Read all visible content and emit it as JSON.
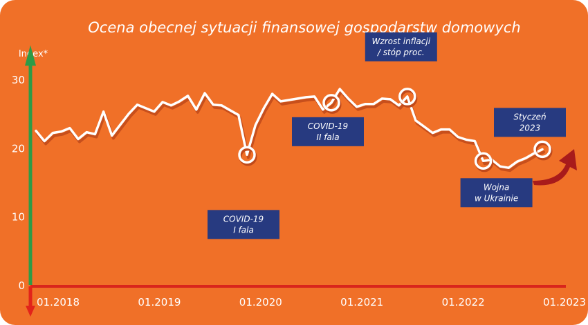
{
  "colors": {
    "background": "#F07028",
    "line": "#ffffff",
    "shadow": "#C0491A",
    "callout_box": "#273A80",
    "y_axis_top": "#2E9B47",
    "y_axis_bottom": "#E2231A",
    "x_axis": "#D9251C",
    "arrow": "#A81B1B"
  },
  "chart_data": {
    "type": "line",
    "title": "Ocena obecnej sytuacji finansowej  gospodarstw domowych",
    "ylabel": "Index*",
    "xlabel": "",
    "ylim": [
      0,
      30
    ],
    "yticks": [
      0,
      10,
      20,
      30
    ],
    "xtick_labels": [
      "01.2018",
      "01.2019",
      "01.2020",
      "01.2021",
      "01.2022",
      "01.2023"
    ],
    "xtick_months": [
      0,
      12,
      24,
      36,
      48,
      60
    ],
    "grid": false,
    "series": [
      {
        "values": [
          22.5,
          21,
          22.2,
          22.4,
          22.9,
          21.3,
          22.3,
          22,
          25.3,
          21.8,
          23.4,
          25,
          26.3,
          25.8,
          25.3,
          26.7,
          26.2,
          26.8,
          27.6,
          25.6,
          28,
          26.3,
          26.2,
          25.5,
          24.8,
          19,
          23.3,
          25.8,
          27.9,
          26.8,
          27,
          27.2,
          27.4,
          27.5,
          25.6,
          26.6,
          28.6,
          27.2,
          26,
          26.4,
          26.4,
          27.2,
          27.1,
          26.2,
          27.5,
          24,
          23.1,
          22.2,
          22.7,
          22.7,
          21.6,
          21.2,
          21,
          18.1,
          18.3,
          17.3,
          17.1,
          18,
          18.5,
          19.2,
          19.8
        ]
      }
    ],
    "annotations": [
      {
        "month": 25,
        "line1": "COVID-19",
        "line2": "I fala"
      },
      {
        "month": 35,
        "line1": "COVID-19",
        "line2": "II fala"
      },
      {
        "month": 44,
        "line1": "Wzrost inflacji",
        "line2": "/ stóp proc."
      },
      {
        "month": 53,
        "line1": "Wojna",
        "line2": "w Ukrainie"
      },
      {
        "month": 60,
        "line1": "Styczeń",
        "line2": "2023"
      }
    ]
  }
}
